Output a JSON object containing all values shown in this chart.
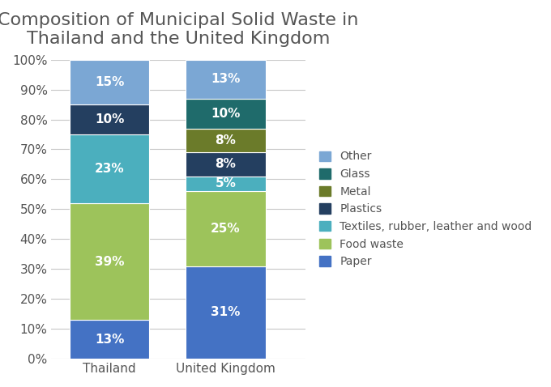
{
  "title": "Composition of Municipal Solid Waste in\nThailand and the United Kingdom",
  "categories": [
    "Thailand",
    "United Kingdom"
  ],
  "segments": [
    {
      "label": "Paper",
      "color": "#4472C4",
      "values": [
        13,
        31
      ]
    },
    {
      "label": "Food waste",
      "color": "#9DC35B",
      "values": [
        39,
        25
      ]
    },
    {
      "label": "Textiles, rubber, leather and wood",
      "color": "#4BAFBE",
      "values": [
        23,
        5
      ]
    },
    {
      "label": "Plastics",
      "color": "#243F60",
      "values": [
        10,
        8
      ]
    },
    {
      "label": "Metal",
      "color": "#6B7B2A",
      "values": [
        0,
        8
      ]
    },
    {
      "label": "Glass",
      "color": "#1F6B6B",
      "values": [
        0,
        10
      ]
    },
    {
      "label": "Other",
      "color": "#7BA7D4",
      "values": [
        15,
        13
      ]
    }
  ],
  "yticks": [
    0,
    10,
    20,
    30,
    40,
    50,
    60,
    70,
    80,
    90,
    100
  ],
  "ytick_labels": [
    "0%",
    "10%",
    "20%",
    "30%",
    "40%",
    "50%",
    "60%",
    "70%",
    "80%",
    "90%",
    "100%"
  ],
  "title_fontsize": 16,
  "label_fontsize": 11,
  "tick_fontsize": 11,
  "legend_fontsize": 10,
  "bar_width": 0.55,
  "x_positions": [
    0.3,
    1.1
  ],
  "xlim": [
    -0.1,
    1.65
  ],
  "background_color": "#FFFFFF",
  "grid_color": "#C8C8C8",
  "text_color": "#555555",
  "legend_order": [
    "Other",
    "Glass",
    "Metal",
    "Plastics",
    "Textiles, rubber, leather and wood",
    "Food waste",
    "Paper"
  ]
}
